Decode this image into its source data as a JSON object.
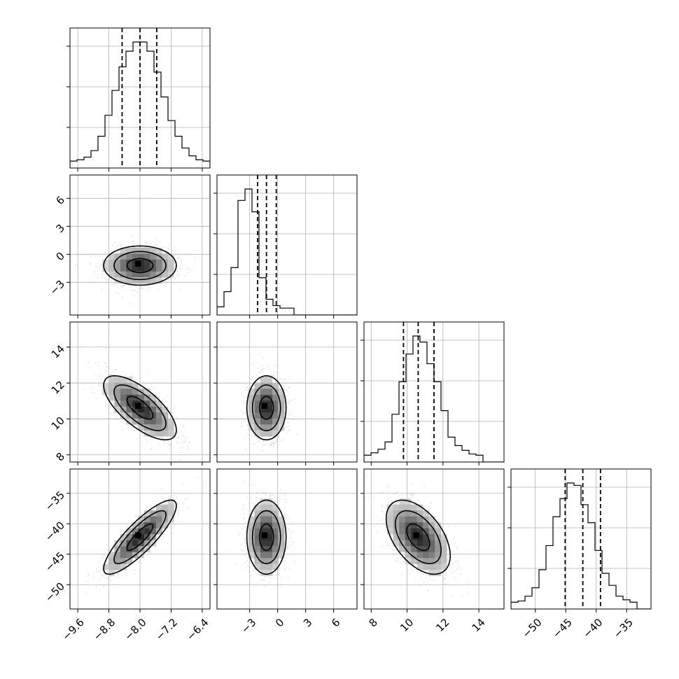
{
  "chart_data": {
    "type": "corner",
    "grid": true,
    "parameters": [
      {
        "range": [
          -9.8,
          -6.2
        ],
        "ticks": [
          -9.6,
          -8.8,
          -8.0,
          -7.2,
          -6.4
        ],
        "tick_labels": [
          "−9.6",
          "−8.8",
          "−8.0",
          "−7.2",
          "−6.4"
        ],
        "quantiles": [
          -8.46,
          -8.0,
          -7.57
        ]
      },
      {
        "range": [
          -6.5,
          8.5
        ],
        "ticks": [
          -3,
          0,
          3,
          6
        ],
        "tick_labels": [
          "−3",
          "0",
          "3",
          "6"
        ],
        "quantiles": [
          -2.15,
          -1.2,
          -0.15
        ]
      },
      {
        "range": [
          7.6,
          15.4
        ],
        "ticks": [
          8,
          10,
          12,
          14
        ],
        "tick_labels": [
          "8",
          "10",
          "12",
          "14"
        ],
        "quantiles": [
          9.8,
          10.62,
          11.5
        ]
      },
      {
        "range": [
          -54,
          -31
        ],
        "ticks": [
          -50,
          -45,
          -40,
          -35
        ],
        "tick_labels": [
          "−50",
          "−45",
          "−40",
          "−35"
        ],
        "quantiles": [
          -45.1,
          -42.2,
          -39.3
        ]
      }
    ],
    "histograms": [
      [
        1,
        2,
        4,
        9,
        20,
        36,
        55,
        73,
        85,
        92,
        92,
        85,
        69,
        50,
        32,
        20,
        11,
        5,
        2,
        1
      ],
      [
        2,
        14,
        33,
        86,
        95,
        77,
        25,
        8,
        3,
        1,
        1,
        0,
        0,
        0,
        0,
        0,
        0,
        0,
        0,
        0
      ],
      [
        1,
        3,
        6,
        12,
        35,
        62,
        85,
        100,
        95,
        77,
        62,
        38,
        16,
        9,
        5,
        2,
        1,
        0,
        0,
        0
      ],
      [
        1,
        2,
        6,
        13,
        28,
        48,
        72,
        87,
        100,
        98,
        82,
        67,
        44,
        25,
        15,
        6,
        3,
        1,
        0,
        0
      ]
    ],
    "correlations": {
      "1-0": 0.0,
      "2-0": -0.7,
      "2-1": 0.0,
      "3-0": 0.85,
      "3-1": 0.0,
      "3-2": -0.5
    }
  }
}
